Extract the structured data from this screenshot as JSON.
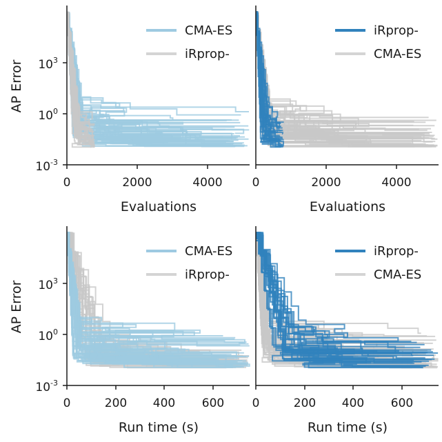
{
  "figure": {
    "ylabel": "AP Error",
    "colors": {
      "cma_es": "#9ecae1",
      "irprop": "#3182bd",
      "gray": "#c8c8c8",
      "axis": "#1a1a1a"
    }
  },
  "chart_data": [
    {
      "type": "line",
      "id": "top-left",
      "xlabel": "Evaluations",
      "ylabel": "AP Error",
      "yscale": "log",
      "xlim": [
        0,
        5200
      ],
      "ylim": [
        0.001,
        1000000
      ],
      "xticks": [
        0,
        2000,
        4000
      ],
      "xtick_labels": [
        "0",
        "2000",
        "4000"
      ],
      "yticks": [
        0.001,
        1,
        1000
      ],
      "ytick_labels": [
        {
          "base": "10",
          "exp": "-3"
        },
        {
          "base": "10",
          "exp": "0"
        },
        {
          "base": "10",
          "exp": "3"
        }
      ],
      "legend": {
        "position": "top-right",
        "entries": [
          {
            "label": "CMA-ES",
            "color": "#9ecae1"
          },
          {
            "label": "iRprop-",
            "color": "#d4d4d4"
          }
        ]
      },
      "series": [
        {
          "name": "CMA-ES",
          "color": "#9ecae1",
          "runs": 40,
          "x_end": 5200,
          "y_start": 300000,
          "x_drop": 300,
          "y_plateau": [
            0.01,
            2
          ]
        },
        {
          "name": "iRprop-",
          "color": "#c8c8c8",
          "runs": 25,
          "x_end": 800,
          "y_start": 300000,
          "x_drop": 250,
          "y_plateau": [
            0.01,
            0.6
          ]
        }
      ]
    },
    {
      "type": "line",
      "id": "top-right",
      "xlabel": "Evaluations",
      "yscale": "log",
      "xlim": [
        0,
        5200
      ],
      "ylim": [
        0.001,
        1000000
      ],
      "xticks": [
        0,
        2000,
        4000
      ],
      "xtick_labels": [
        "0",
        "2000",
        "4000"
      ],
      "legend": {
        "position": "top-right",
        "entries": [
          {
            "label": "iRprop-",
            "color": "#3182bd"
          },
          {
            "label": "CMA-ES",
            "color": "#d4d4d4"
          }
        ]
      },
      "series": [
        {
          "name": "CMA-ES",
          "color": "#c8c8c8",
          "runs": 40,
          "x_end": 5200,
          "y_start": 300000,
          "x_drop": 300,
          "y_plateau": [
            0.01,
            2
          ]
        },
        {
          "name": "iRprop-",
          "color": "#3182bd",
          "runs": 25,
          "x_end": 800,
          "y_start": 300000,
          "x_drop": 250,
          "y_plateau": [
            0.01,
            0.6
          ]
        }
      ]
    },
    {
      "type": "line",
      "id": "bottom-left",
      "xlabel": "Run time (s)",
      "ylabel": "AP Error",
      "yscale": "log",
      "xlim": [
        0,
        750
      ],
      "ylim": [
        0.001,
        1000000
      ],
      "xticks": [
        0,
        200,
        400,
        600
      ],
      "xtick_labels": [
        "0",
        "200",
        "400",
        "600"
      ],
      "yticks": [
        0.001,
        1,
        1000
      ],
      "ytick_labels": [
        {
          "base": "10",
          "exp": "-3"
        },
        {
          "base": "10",
          "exp": "0"
        },
        {
          "base": "10",
          "exp": "3"
        }
      ],
      "legend": {
        "position": "top-right",
        "entries": [
          {
            "label": "CMA-ES",
            "color": "#9ecae1"
          },
          {
            "label": "iRprop-",
            "color": "#d4d4d4"
          }
        ]
      },
      "series": [
        {
          "name": "iRprop-",
          "color": "#c8c8c8",
          "runs": 25,
          "x_end": 750,
          "y_start": 300000,
          "x_drop": 120,
          "y_plateau": [
            0.01,
            1
          ]
        },
        {
          "name": "CMA-ES",
          "color": "#9ecae1",
          "runs": 40,
          "x_end": 750,
          "y_start": 300000,
          "x_drop": 40,
          "y_plateau": [
            0.01,
            2
          ]
        }
      ]
    },
    {
      "type": "line",
      "id": "bottom-right",
      "xlabel": "Run time (s)",
      "yscale": "log",
      "xlim": [
        0,
        750
      ],
      "ylim": [
        0.001,
        1000000
      ],
      "xticks": [
        0,
        200,
        400,
        600
      ],
      "xtick_labels": [
        "0",
        "200",
        "400",
        "600"
      ],
      "legend": {
        "position": "top-right",
        "entries": [
          {
            "label": "iRprop-",
            "color": "#3182bd"
          },
          {
            "label": "CMA-ES",
            "color": "#d4d4d4"
          }
        ]
      },
      "series": [
        {
          "name": "CMA-ES",
          "color": "#c8c8c8",
          "runs": 40,
          "x_end": 750,
          "y_start": 300000,
          "x_drop": 40,
          "y_plateau": [
            0.01,
            2
          ]
        },
        {
          "name": "iRprop-",
          "color": "#3182bd",
          "runs": 25,
          "x_end": 750,
          "y_start": 300000,
          "x_drop": 120,
          "y_plateau": [
            0.01,
            1
          ]
        }
      ]
    }
  ]
}
